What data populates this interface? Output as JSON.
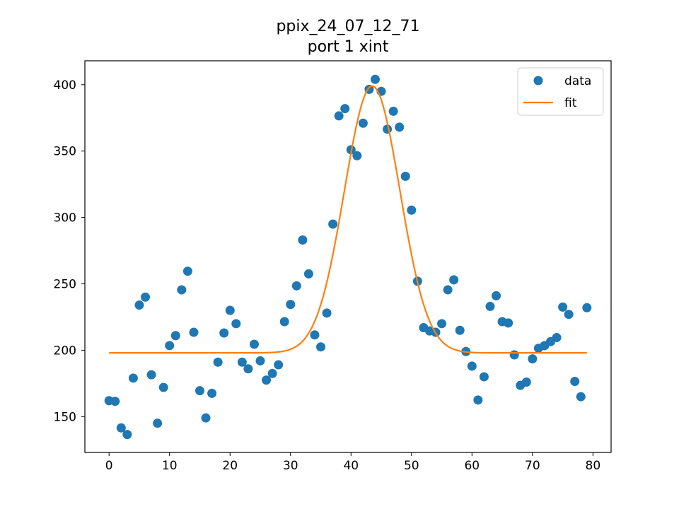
{
  "chart_data": {
    "type": "scatter",
    "title": "ppix_24_07_12_71",
    "subtitle": "port 1 xint",
    "xlabel": "",
    "ylabel": "",
    "xlim": [
      -4,
      83
    ],
    "ylim": [
      123,
      418
    ],
    "xticks": [
      0,
      10,
      20,
      30,
      40,
      50,
      60,
      70,
      80
    ],
    "yticks": [
      150,
      200,
      250,
      300,
      350,
      400
    ],
    "grid": false,
    "legend_position": "top-right",
    "series": [
      {
        "name": "data",
        "kind": "scatter",
        "color": "#1f77b4",
        "x": [
          0,
          1,
          2,
          3,
          4,
          5,
          6,
          7,
          8,
          9,
          10,
          11,
          12,
          13,
          14,
          15,
          16,
          17,
          18,
          19,
          20,
          21,
          22,
          23,
          24,
          25,
          26,
          27,
          28,
          29,
          30,
          31,
          32,
          33,
          34,
          35,
          36,
          37,
          38,
          39,
          40,
          41,
          42,
          43,
          44,
          45,
          46,
          47,
          48,
          49,
          50,
          51,
          52,
          53,
          54,
          55,
          56,
          57,
          58,
          59,
          60,
          61,
          62,
          63,
          64,
          65,
          66,
          67,
          68,
          69,
          70,
          71,
          72,
          73,
          74,
          75,
          76,
          77,
          78,
          79
        ],
        "y": [
          162,
          161.5,
          141.5,
          136.5,
          179,
          234,
          240,
          181.5,
          145,
          172,
          203.5,
          211,
          245.5,
          259.5,
          213.5,
          169.5,
          149,
          167.5,
          191,
          213,
          230,
          220,
          191,
          186,
          204.5,
          192,
          177.5,
          182.5,
          189,
          221.5,
          234.5,
          248.5,
          283,
          257.5,
          211.5,
          202.5,
          228,
          295,
          376.5,
          382,
          351,
          346.5,
          371,
          396.5,
          404,
          395,
          366.5,
          380,
          368,
          331,
          305.5,
          252,
          217,
          214.5,
          213.5,
          220,
          245.5,
          253,
          215,
          199,
          188,
          162.5,
          180,
          233,
          241,
          221.5,
          220.5,
          196.5,
          173.5,
          176,
          193.5,
          201.5,
          203.5,
          206.5,
          209.5,
          232.5,
          227,
          176.5,
          165,
          232
        ]
      },
      {
        "name": "fit",
        "kind": "line",
        "color": "#ff7f0e",
        "baseline": 198,
        "amplitude": 201,
        "center": 43.5,
        "sigma": 4.6,
        "x_range": [
          0,
          79
        ]
      }
    ]
  }
}
